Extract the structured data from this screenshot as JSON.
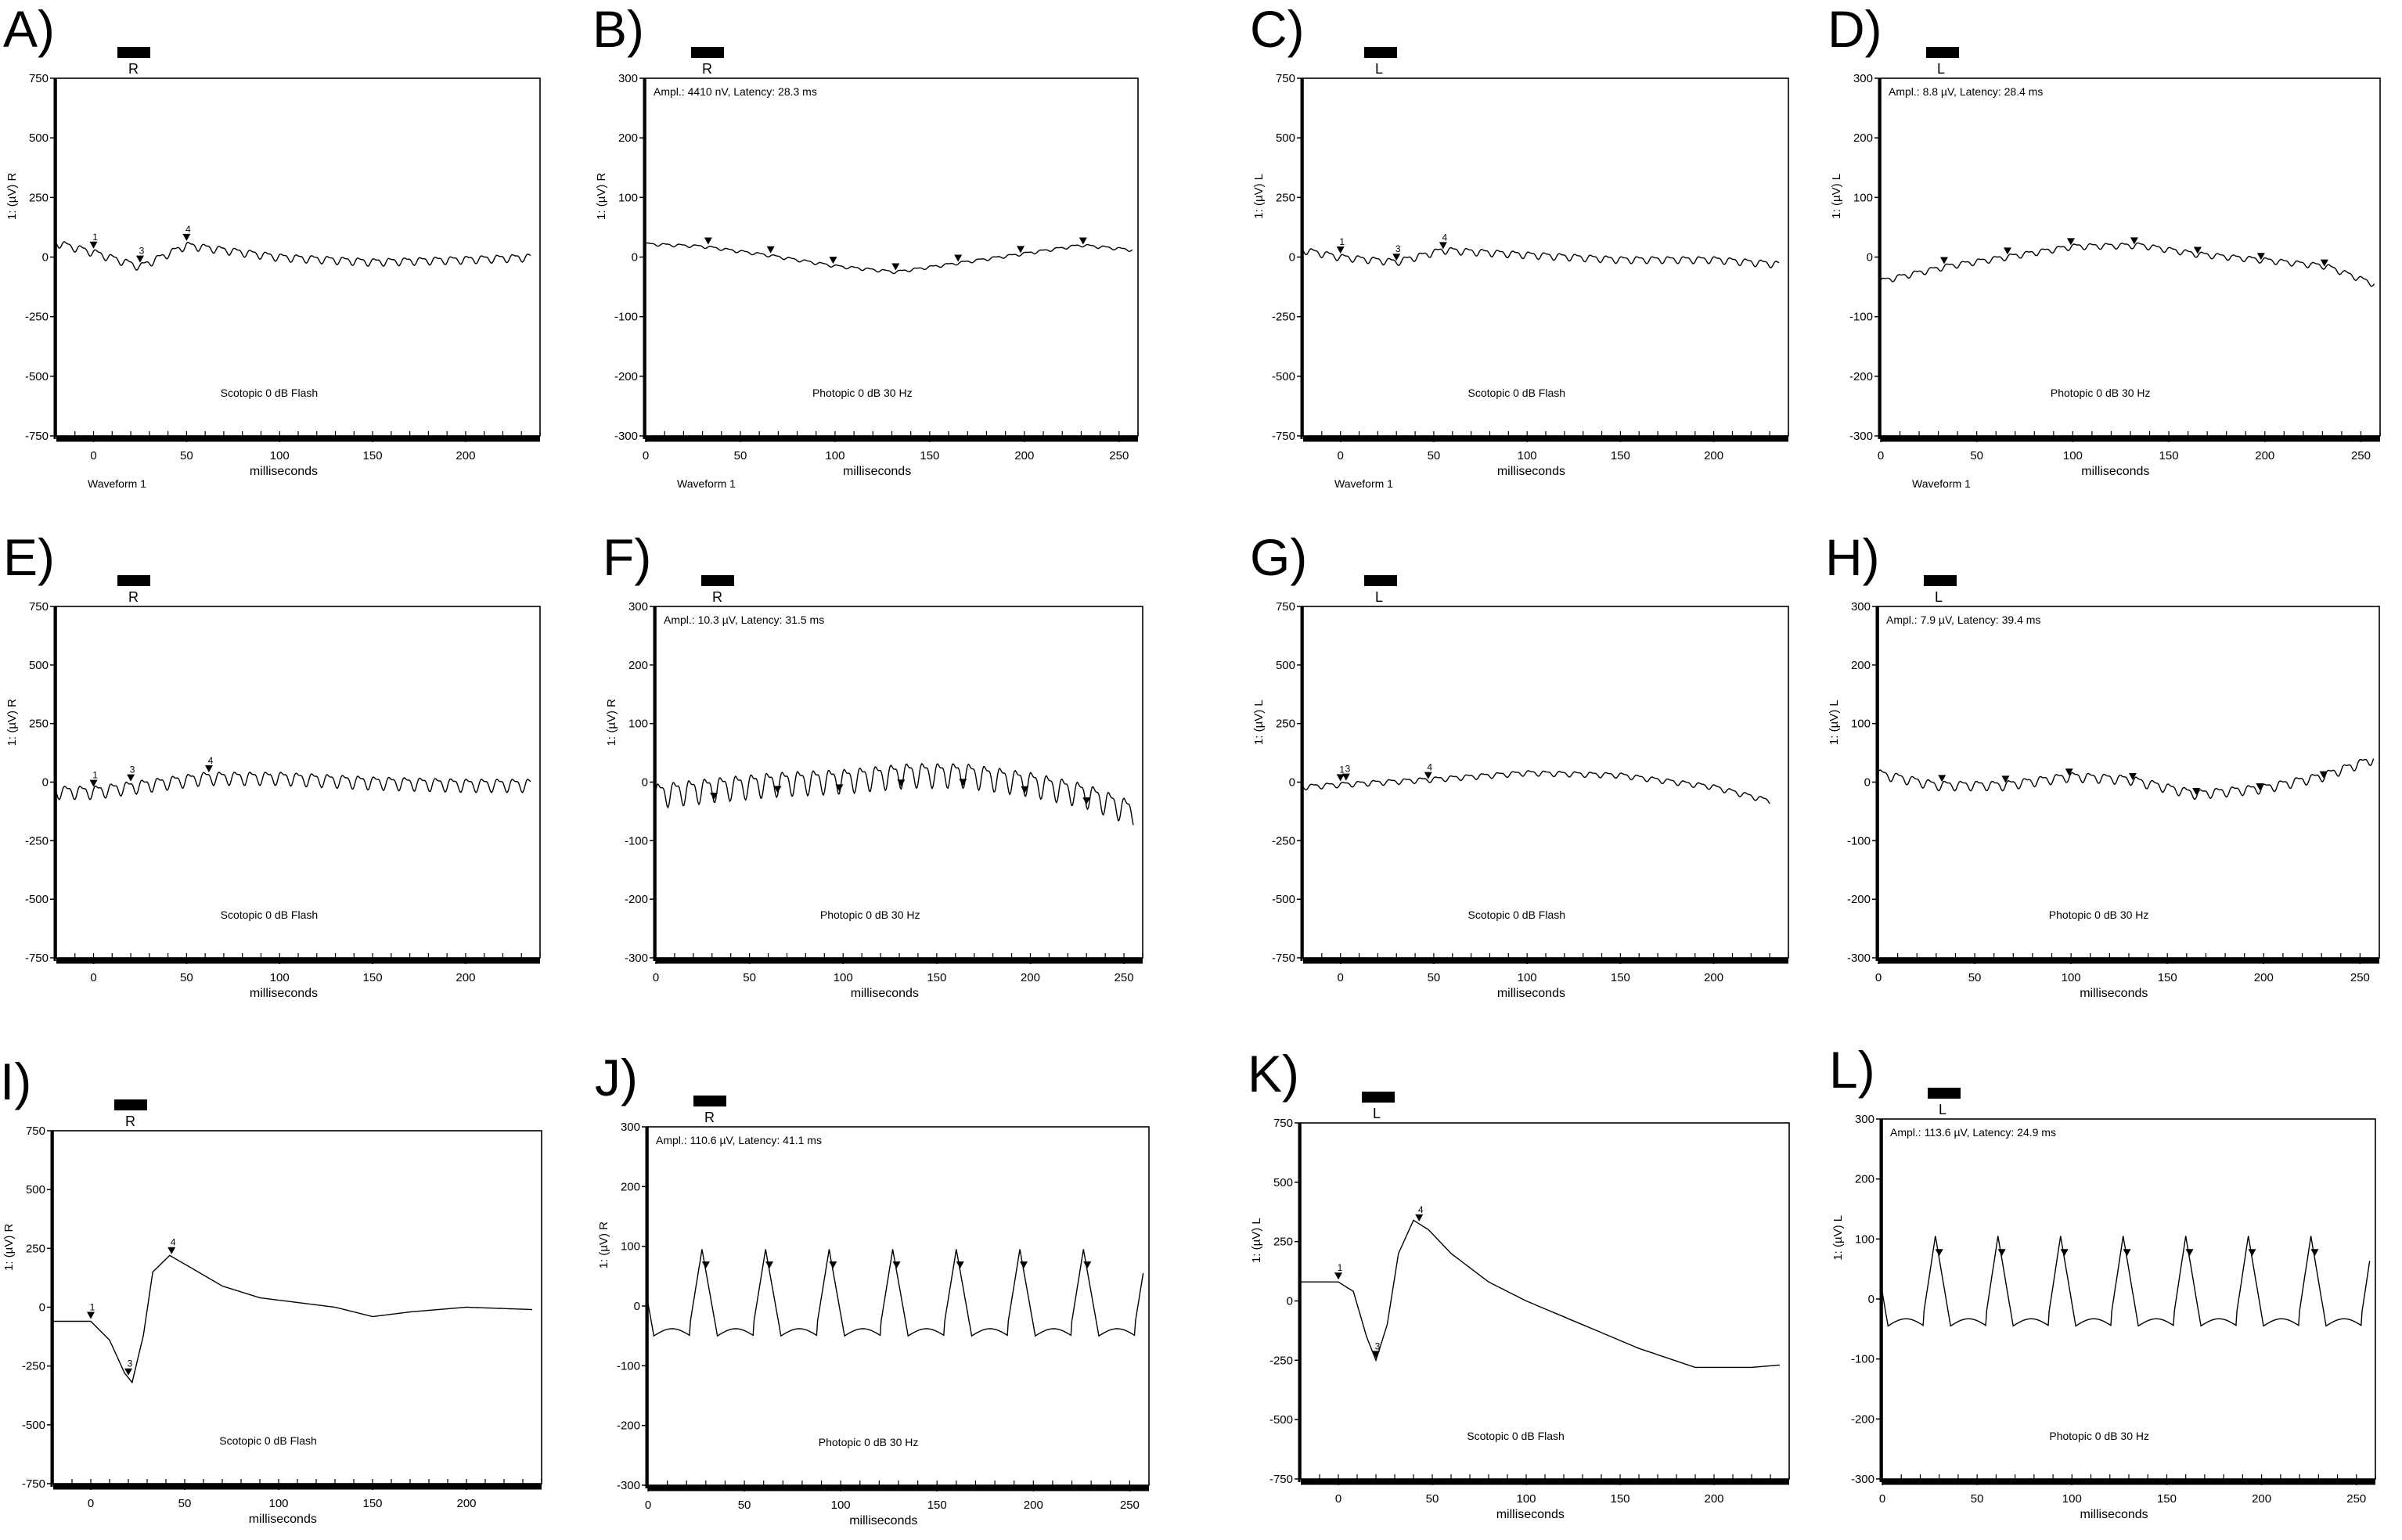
{
  "chart_data": [
    {
      "panel": "A)",
      "eye": "R",
      "type": "line",
      "kind": "scotopic",
      "ylabel": "1: (µV) R",
      "xlabel": "milliseconds",
      "xlim": [
        -20,
        240
      ],
      "ylim": [
        -750,
        750
      ],
      "xticks": [
        0,
        50,
        100,
        150,
        200
      ],
      "yticks": [
        750,
        500,
        250,
        0,
        -250,
        -500,
        -750
      ],
      "condition": "Scotopic 0 dB Flash",
      "ampl": "",
      "waveform": "Waveform 1",
      "series": [
        {
          "wave": "noise",
          "amp": 20,
          "period": 8.3,
          "x": [
            -20,
            0,
            25,
            50,
            100,
            150,
            200,
            235
          ],
          "y": [
            60,
            20,
            -40,
            50,
            0,
            -20,
            -10,
            0
          ]
        }
      ],
      "markers": [
        {
          "x": 0,
          "label": "1"
        },
        {
          "x": 25,
          "label": "3"
        },
        {
          "x": 50,
          "label": "4"
        }
      ]
    },
    {
      "panel": "B)",
      "eye": "R",
      "type": "line",
      "kind": "photopic",
      "ylabel": "1: (µV) R",
      "xlabel": "milliseconds",
      "xlim": [
        0,
        260
      ],
      "ylim": [
        -300,
        300
      ],
      "xticks": [
        0,
        50,
        100,
        150,
        200,
        250
      ],
      "yticks": [
        300,
        200,
        100,
        0,
        -100,
        -200,
        -300
      ],
      "condition": "Photopic 0 dB 30 Hz",
      "ampl": "Ampl.: 4410 nV, Latency: 28.3 ms",
      "waveform": "Waveform 1",
      "series": [
        {
          "wave": "noise",
          "amp": 3,
          "period": 8.3,
          "x": [
            0,
            30,
            65,
            100,
            132,
            165,
            198,
            230,
            257
          ],
          "y": [
            22,
            18,
            3,
            -15,
            -25,
            -10,
            5,
            20,
            12
          ]
        }
      ],
      "markers": [
        {
          "x": 33,
          "label": ""
        },
        {
          "x": 66,
          "label": ""
        },
        {
          "x": 99,
          "label": ""
        },
        {
          "x": 132,
          "label": ""
        },
        {
          "x": 165,
          "label": ""
        },
        {
          "x": 198,
          "label": ""
        },
        {
          "x": 231,
          "label": ""
        }
      ]
    },
    {
      "panel": "C)",
      "eye": "L",
      "type": "line",
      "kind": "scotopic",
      "ylabel": "1: (µV) L",
      "xlabel": "milliseconds",
      "xlim": [
        -20,
        240
      ],
      "ylim": [
        -750,
        750
      ],
      "xticks": [
        0,
        50,
        100,
        150,
        200
      ],
      "yticks": [
        750,
        500,
        250,
        0,
        -250,
        -500,
        -750
      ],
      "condition": "Scotopic 0 dB Flash",
      "ampl": "",
      "waveform": "Waveform 1",
      "series": [
        {
          "wave": "noise",
          "amp": 18,
          "period": 8.3,
          "x": [
            -20,
            0,
            30,
            55,
            100,
            150,
            200,
            235
          ],
          "y": [
            30,
            0,
            -20,
            30,
            10,
            -10,
            -10,
            -30
          ]
        }
      ],
      "markers": [
        {
          "x": 0,
          "label": "1"
        },
        {
          "x": 30,
          "label": "3"
        },
        {
          "x": 55,
          "label": "4"
        }
      ]
    },
    {
      "panel": "D)",
      "eye": "L",
      "type": "line",
      "kind": "photopic",
      "ylabel": "1: (µV) L",
      "xlabel": "milliseconds",
      "xlim": [
        0,
        260
      ],
      "ylim": [
        -300,
        300
      ],
      "xticks": [
        0,
        50,
        100,
        150,
        200,
        250
      ],
      "yticks": [
        300,
        200,
        100,
        0,
        -100,
        -200,
        -300
      ],
      "condition": "Photopic 0 dB 30 Hz",
      "ampl": "Ampl.: 8.8 µV, Latency: 28.4 ms",
      "waveform": "Waveform 1",
      "series": [
        {
          "wave": "noise",
          "amp": 6,
          "period": 8.3,
          "x": [
            0,
            35,
            65,
            100,
            135,
            165,
            200,
            232,
            257
          ],
          "y": [
            -40,
            -15,
            0,
            18,
            20,
            5,
            -5,
            -15,
            -45
          ]
        }
      ],
      "markers": [
        {
          "x": 33,
          "label": ""
        },
        {
          "x": 66,
          "label": ""
        },
        {
          "x": 99,
          "label": ""
        },
        {
          "x": 132,
          "label": ""
        },
        {
          "x": 165,
          "label": ""
        },
        {
          "x": 198,
          "label": ""
        },
        {
          "x": 231,
          "label": ""
        }
      ]
    },
    {
      "panel": "E)",
      "eye": "R",
      "type": "line",
      "kind": "scotopic",
      "ylabel": "1: (µV) R",
      "xlabel": "milliseconds",
      "xlim": [
        -20,
        240
      ],
      "ylim": [
        -750,
        750
      ],
      "xticks": [
        0,
        50,
        100,
        150,
        200
      ],
      "yticks": [
        750,
        500,
        250,
        0,
        -250,
        -500,
        -750
      ],
      "condition": "Scotopic 0 dB Flash",
      "ampl": "",
      "waveform": "",
      "series": [
        {
          "wave": "noise",
          "amp": 35,
          "period": 8.3,
          "x": [
            -20,
            0,
            20,
            60,
            100,
            150,
            200,
            235
          ],
          "y": [
            -40,
            -40,
            -20,
            20,
            20,
            0,
            -10,
            -10
          ]
        }
      ],
      "markers": [
        {
          "x": 0,
          "label": "1"
        },
        {
          "x": 20,
          "label": "3"
        },
        {
          "x": 62,
          "label": "4"
        }
      ]
    },
    {
      "panel": "F)",
      "eye": "R",
      "type": "line",
      "kind": "photopic",
      "ylabel": "1: (µV) R",
      "xlabel": "milliseconds",
      "xlim": [
        0,
        260
      ],
      "ylim": [
        -300,
        300
      ],
      "xticks": [
        0,
        50,
        100,
        150,
        200,
        250
      ],
      "yticks": [
        300,
        200,
        100,
        0,
        -100,
        -200,
        -300
      ],
      "condition": "Photopic 0 dB 30 Hz",
      "ampl": "Ampl.: 10.3 µV, Latency: 31.5 ms",
      "waveform": "",
      "series": [
        {
          "wave": "noise",
          "amp": 26,
          "period": 8.3,
          "x": [
            0,
            30,
            65,
            100,
            135,
            165,
            200,
            230,
            255
          ],
          "y": [
            -20,
            -10,
            0,
            5,
            15,
            15,
            0,
            -20,
            -50
          ]
        }
      ],
      "markers": [
        {
          "x": 31,
          "label": ""
        },
        {
          "x": 65,
          "label": ""
        },
        {
          "x": 98,
          "label": ""
        },
        {
          "x": 131,
          "label": ""
        },
        {
          "x": 164,
          "label": ""
        },
        {
          "x": 197,
          "label": ""
        },
        {
          "x": 230,
          "label": ""
        }
      ]
    },
    {
      "panel": "G)",
      "eye": "L",
      "type": "line",
      "kind": "scotopic",
      "ylabel": "1: (µV) L",
      "xlabel": "milliseconds",
      "xlim": [
        -20,
        240
      ],
      "ylim": [
        -750,
        750
      ],
      "xticks": [
        0,
        50,
        100,
        150,
        200
      ],
      "yticks": [
        750,
        500,
        250,
        0,
        -250,
        -500,
        -750
      ],
      "condition": "Scotopic 0 dB Flash",
      "ampl": "",
      "waveform": "",
      "series": [
        {
          "wave": "noise",
          "amp": 14,
          "period": 8.3,
          "x": [
            -20,
            0,
            45,
            100,
            150,
            200,
            230
          ],
          "y": [
            -20,
            -10,
            10,
            40,
            30,
            -20,
            -80
          ]
        }
      ],
      "markers": [
        {
          "x": 0,
          "label": "1"
        },
        {
          "x": 3,
          "label": "3"
        },
        {
          "x": 47,
          "label": "4"
        }
      ]
    },
    {
      "panel": "H)",
      "eye": "L",
      "type": "line",
      "kind": "photopic",
      "ylabel": "1: (µV) L",
      "xlabel": "milliseconds",
      "xlim": [
        0,
        260
      ],
      "ylim": [
        -300,
        300
      ],
      "xticks": [
        0,
        50,
        100,
        150,
        200,
        250
      ],
      "yticks": [
        300,
        200,
        100,
        0,
        -100,
        -200,
        -300
      ],
      "condition": "Photopic 0 dB 30 Hz",
      "ampl": "Ampl.: 7.9 µV, Latency: 39.4 ms",
      "waveform": "",
      "series": [
        {
          "wave": "noise",
          "amp": 10,
          "period": 8.3,
          "x": [
            0,
            30,
            65,
            100,
            130,
            165,
            200,
            230,
            257
          ],
          "y": [
            15,
            -5,
            -5,
            10,
            5,
            -20,
            -10,
            10,
            40
          ]
        }
      ],
      "markers": [
        {
          "x": 33,
          "label": ""
        },
        {
          "x": 66,
          "label": ""
        },
        {
          "x": 99,
          "label": ""
        },
        {
          "x": 132,
          "label": ""
        },
        {
          "x": 165,
          "label": ""
        },
        {
          "x": 198,
          "label": ""
        },
        {
          "x": 231,
          "label": ""
        }
      ]
    },
    {
      "panel": "I)",
      "eye": "R",
      "type": "line",
      "kind": "scotopic",
      "ylabel": "1: (µV) R",
      "xlabel": "milliseconds",
      "xlim": [
        -20,
        240
      ],
      "ylim": [
        -750,
        750
      ],
      "xticks": [
        0,
        50,
        100,
        150,
        200
      ],
      "yticks": [
        750,
        500,
        250,
        0,
        -250,
        -500,
        -750
      ],
      "condition": "Scotopic 0 dB Flash",
      "ampl": "",
      "waveform": "",
      "series": [
        {
          "wave": "smooth",
          "amp": 0,
          "period": 8.3,
          "x": [
            -20,
            0,
            10,
            18,
            22,
            28,
            33,
            42,
            55,
            70,
            90,
            110,
            130,
            150,
            170,
            200,
            235
          ],
          "y": [
            -60,
            -60,
            -140,
            -280,
            -320,
            -120,
            150,
            220,
            160,
            90,
            40,
            20,
            0,
            -40,
            -20,
            0,
            -10
          ]
        }
      ],
      "markers": [
        {
          "x": 0,
          "label": "1"
        },
        {
          "x": 20,
          "label": "3"
        },
        {
          "x": 43,
          "label": "4"
        }
      ]
    },
    {
      "panel": "J)",
      "eye": "R",
      "type": "line",
      "kind": "photopic",
      "ylabel": "1: (µV) R",
      "xlabel": "milliseconds",
      "xlim": [
        0,
        260
      ],
      "ylim": [
        -300,
        300
      ],
      "xticks": [
        0,
        50,
        100,
        150,
        200,
        250
      ],
      "yticks": [
        300,
        200,
        100,
        0,
        -100,
        -200,
        -300
      ],
      "condition": "Photopic 0 dB 30 Hz",
      "ampl": "Ampl.: 110.6 µV, Latency: 41.1 ms",
      "waveform": "",
      "series": [
        {
          "wave": "flicker",
          "amp": 120,
          "period": 33,
          "phase": 22,
          "x": [
            0,
            257
          ],
          "y": [
            -25,
            -25
          ]
        }
      ],
      "markers": [
        {
          "x": 30,
          "label": ""
        },
        {
          "x": 63,
          "label": ""
        },
        {
          "x": 96,
          "label": ""
        },
        {
          "x": 129,
          "label": ""
        },
        {
          "x": 162,
          "label": ""
        },
        {
          "x": 195,
          "label": ""
        },
        {
          "x": 228,
          "label": ""
        }
      ]
    },
    {
      "panel": "K)",
      "eye": "L",
      "type": "line",
      "kind": "scotopic",
      "ylabel": "1: (µV) L",
      "xlabel": "milliseconds",
      "xlim": [
        -20,
        240
      ],
      "ylim": [
        -750,
        750
      ],
      "xticks": [
        0,
        50,
        100,
        150,
        200
      ],
      "yticks": [
        750,
        500,
        250,
        0,
        -250,
        -500,
        -750
      ],
      "condition": "Scotopic 0 dB Flash",
      "ampl": "",
      "waveform": "",
      "series": [
        {
          "wave": "smooth",
          "amp": 0,
          "period": 8.3,
          "x": [
            -20,
            0,
            8,
            15,
            20,
            26,
            32,
            40,
            48,
            60,
            80,
            100,
            130,
            160,
            190,
            220,
            235
          ],
          "y": [
            80,
            80,
            40,
            -150,
            -250,
            -100,
            200,
            340,
            300,
            200,
            80,
            0,
            -100,
            -200,
            -280,
            -280,
            -270
          ]
        }
      ],
      "markers": [
        {
          "x": 0,
          "label": "1"
        },
        {
          "x": 20,
          "label": "3"
        },
        {
          "x": 43,
          "label": "4"
        }
      ]
    },
    {
      "panel": "L)",
      "eye": "L",
      "type": "line",
      "kind": "photopic",
      "ylabel": "1: (µV) L",
      "xlabel": "milliseconds",
      "xlim": [
        0,
        260
      ],
      "ylim": [
        -300,
        300
      ],
      "xticks": [
        0,
        50,
        100,
        150,
        200,
        250
      ],
      "yticks": [
        300,
        200,
        100,
        0,
        -100,
        -200,
        -300
      ],
      "condition": "Photopic 0 dB 30 Hz",
      "ampl": "Ampl.: 113.6 µV, Latency: 24.9 ms",
      "waveform": "",
      "series": [
        {
          "wave": "flicker",
          "amp": 125,
          "period": 33,
          "phase": 22,
          "x": [
            0,
            257
          ],
          "y": [
            -20,
            -20
          ]
        }
      ],
      "markers": [
        {
          "x": 30,
          "label": ""
        },
        {
          "x": 63,
          "label": ""
        },
        {
          "x": 96,
          "label": ""
        },
        {
          "x": 129,
          "label": ""
        },
        {
          "x": 162,
          "label": ""
        },
        {
          "x": 195,
          "label": ""
        },
        {
          "x": 228,
          "label": ""
        }
      ]
    }
  ]
}
